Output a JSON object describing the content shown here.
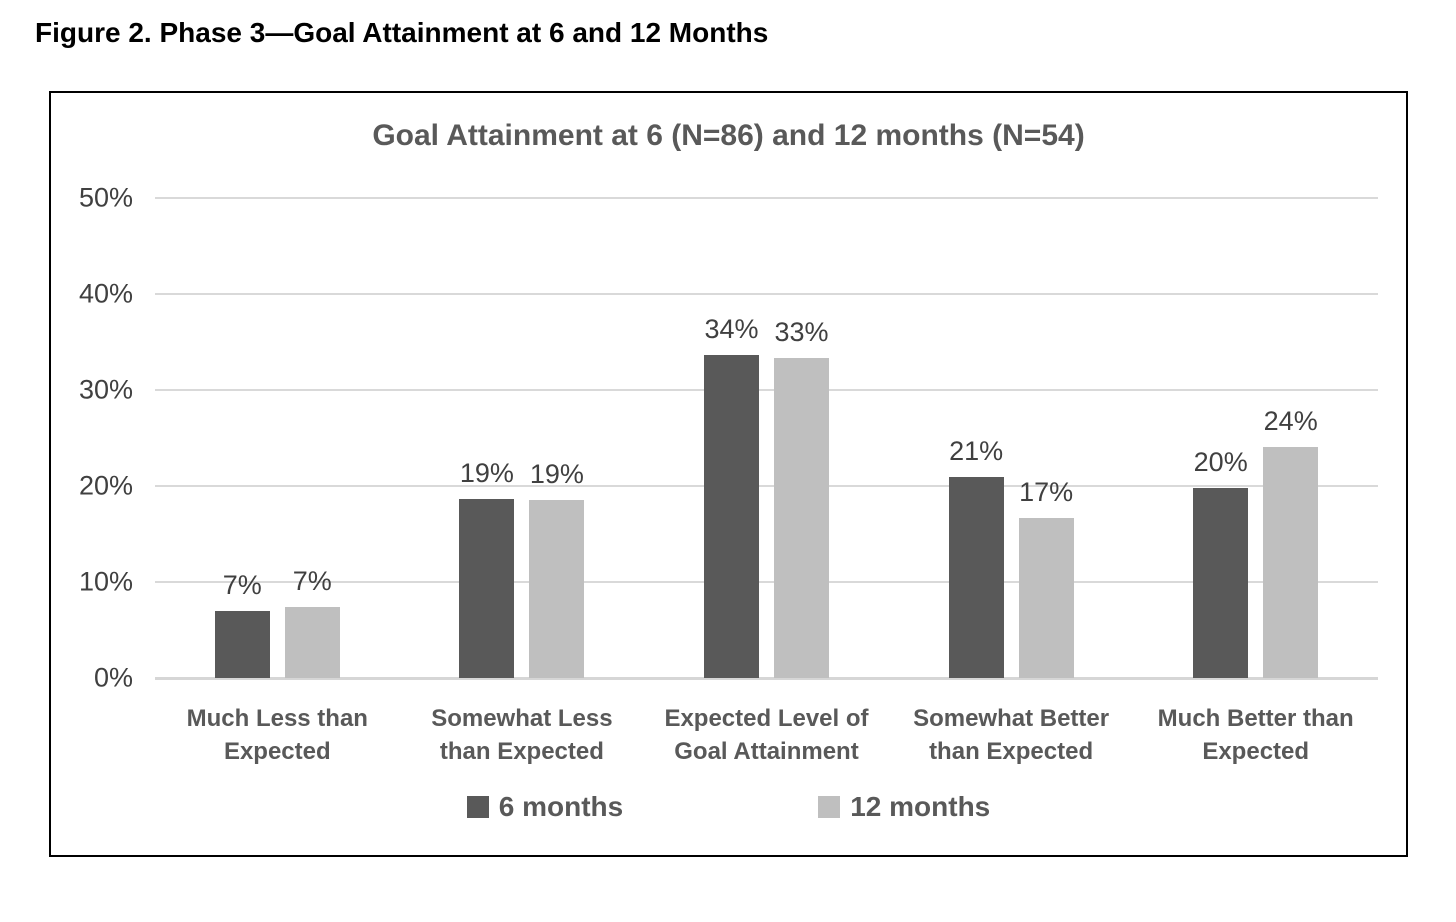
{
  "figure_caption": "Figure 2. Phase 3—Goal Attainment at 6 and 12 Months",
  "chart_data": {
    "type": "bar",
    "title": "Goal Attainment at 6 (N=86) and 12 months (N=54)",
    "categories": [
      "Much Less than Expected",
      "Somewhat Less than Expected",
      "Expected Level of Goal Attainment",
      "Somewhat Better than Expected",
      "Much Better than Expected"
    ],
    "series": [
      {
        "name": "6 months",
        "color": "#595959",
        "values": [
          7.0,
          18.6,
          33.7,
          20.9,
          19.8
        ],
        "data_labels": [
          "7%",
          "19%",
          "34%",
          "21%",
          "20%"
        ]
      },
      {
        "name": "12 months",
        "color": "#bfbfbf",
        "values": [
          7.4,
          18.5,
          33.3,
          16.7,
          24.1
        ],
        "data_labels": [
          "7%",
          "19%",
          "33%",
          "17%",
          "24%"
        ]
      }
    ],
    "y_axis": {
      "min": 0,
      "max": 50,
      "ticks": [
        "0%",
        "10%",
        "20%",
        "30%",
        "40%",
        "50%"
      ]
    },
    "legend": [
      {
        "label": "6 months",
        "color": "#595959"
      },
      {
        "label": "12 months",
        "color": "#bfbfbf"
      }
    ],
    "grid": true,
    "legend_position": "bottom",
    "colors": {
      "gridline": "#d9d9d9",
      "axis_text": "#404040",
      "label_text": "#595959"
    }
  }
}
